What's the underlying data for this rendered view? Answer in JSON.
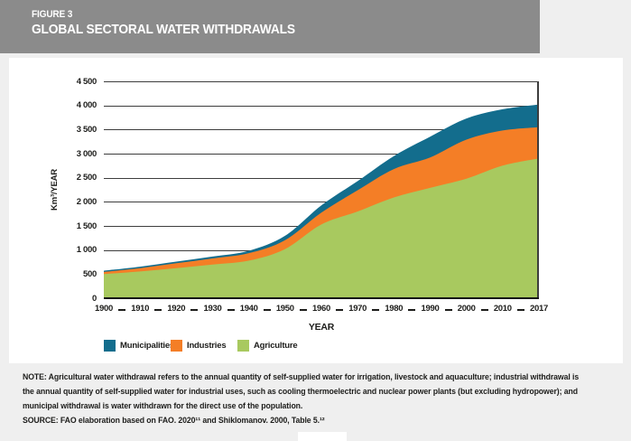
{
  "figure": {
    "label": "FIGURE 3",
    "title": "GLOBAL SECTORAL WATER WITHDRAWALS"
  },
  "chart_data": {
    "type": "area",
    "stacked": true,
    "title": "Global sectoral water withdrawals",
    "xlabel": "YEAR",
    "ylabel": "Km³/YEAR",
    "ylim": [
      0,
      4500
    ],
    "ytick_step": 500,
    "ytick_labels": [
      "0",
      "500",
      "1 000",
      "1 500",
      "2 000",
      "2 500",
      "3 000",
      "3 500",
      "4 000",
      "4 500"
    ],
    "grid": true,
    "legend_position": "bottom",
    "categories": [
      "1900",
      "1910",
      "1920",
      "1930",
      "1940",
      "1950",
      "1960",
      "1970",
      "1980",
      "1990",
      "2000",
      "2010",
      "2017"
    ],
    "series": [
      {
        "name": "Municipalities",
        "color": "#136d8d",
        "values": [
          25,
          30,
          35,
          40,
          50,
          90,
          150,
          190,
          270,
          430,
          440,
          440,
          470
        ]
      },
      {
        "name": "Industries",
        "color": "#f47e26",
        "values": [
          45,
          70,
          100,
          125,
          155,
          185,
          245,
          440,
          590,
          630,
          810,
          730,
          650
        ]
      },
      {
        "name": "Agriculture",
        "color": "#a8c95f",
        "values": [
          500,
          555,
          625,
          700,
          780,
          1020,
          1530,
          1800,
          2090,
          2290,
          2480,
          2750,
          2900
        ]
      }
    ],
    "stack_order": [
      "Agriculture",
      "Industries",
      "Municipalities"
    ],
    "totals": [
      570,
      655,
      760,
      865,
      985,
      1295,
      1925,
      2430,
      2950,
      3350,
      3730,
      3920,
      4020
    ]
  },
  "note": {
    "text": "NOTE: Agricultural water withdrawal refers to the annual quantity of self-supplied water for irrigation, livestock and aquaculture; industrial withdrawal is the annual quantity of self-supplied water for industrial uses, such as cooling thermoelectric and nuclear power plants (but excluding hydropower); and municipal withdrawal is water withdrawn for the direct use of the population.",
    "source": "SOURCE: FAO elaboration based on FAO. 2020¹¹ and Shiklomanov. 2000, Table 5.¹²"
  },
  "colors": {
    "header_bg": "#8b8b8b",
    "page_bg": "#efefef",
    "card_bg": "#ffffff",
    "gridline": "#3d3d3d",
    "axis": "#161616",
    "text": "#1d1d1b",
    "municipalities": "#136d8d",
    "industries": "#f47e26",
    "agriculture": "#a8c95f"
  }
}
